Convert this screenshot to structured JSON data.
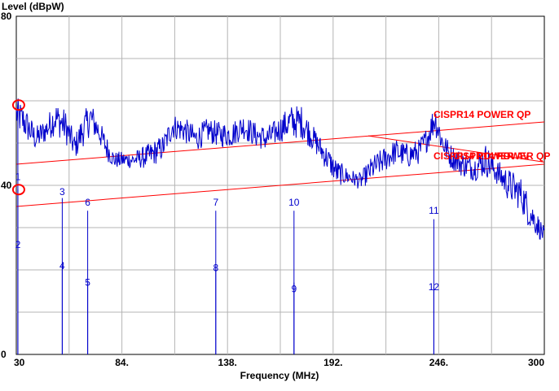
{
  "chart_data": {
    "type": "line",
    "ylabel": "Level (dBpW)",
    "xlabel": "Frequency (MHz)",
    "xlim": [
      30,
      300
    ],
    "ylim": [
      0,
      80
    ],
    "x_ticks": [
      "30",
      "84.",
      "138.",
      "192.",
      "246.",
      "300"
    ],
    "y_ticks": [
      "0",
      "40",
      "80"
    ],
    "grid": true,
    "colors": {
      "trace": "#0000cc",
      "limit": "#ff0000",
      "grid": "#b4b4b4"
    },
    "limit_lines": [
      {
        "name": "CISPR14 POWER QP",
        "x": [
          30,
          300
        ],
        "y": [
          45,
          55
        ]
      },
      {
        "name": "CISPR14 POWER AV",
        "x": [
          30,
          300
        ],
        "y": [
          35,
          45
        ]
      }
    ],
    "limit_labels": [
      "CISPR14 POWER QP",
      "CISPR14 POWER AV",
      "CISPR14 POWER QP"
    ],
    "trace_profile": {
      "x": [
        30,
        34,
        40,
        45,
        50,
        55,
        60,
        64,
        68,
        72,
        76,
        80,
        84,
        90,
        98,
        105,
        110,
        116,
        122,
        128,
        134,
        140,
        146,
        152,
        158,
        164,
        170,
        176,
        182,
        188,
        194,
        200,
        206,
        212,
        218,
        224,
        230,
        236,
        240,
        244,
        248,
        252,
        258,
        264,
        270,
        276,
        282,
        288,
        292,
        296,
        300
      ],
      "y": [
        57,
        55,
        51,
        53,
        56,
        54,
        49,
        53,
        56,
        53,
        49,
        46,
        46,
        46,
        47,
        49,
        54,
        53,
        51,
        53,
        52,
        52,
        54,
        52,
        51,
        53,
        55,
        55,
        51,
        47,
        43,
        42,
        41,
        44,
        46,
        48,
        47,
        48,
        51,
        56,
        50,
        47,
        45,
        44,
        46,
        43,
        40,
        38,
        34,
        31,
        28
      ],
      "spread": [
        4,
        4,
        3,
        3,
        4,
        4,
        3,
        4,
        4,
        3,
        3,
        2,
        2,
        2,
        3,
        3,
        3,
        3,
        3,
        3,
        3,
        3,
        3,
        3,
        3,
        3,
        4,
        4,
        3,
        3,
        3,
        2,
        2,
        3,
        3,
        3,
        3,
        3,
        3,
        4,
        3,
        3,
        3,
        3,
        4,
        3,
        4,
        4,
        4,
        3,
        2
      ]
    },
    "markers": [
      {
        "label": "1",
        "freq": 30.8,
        "level": 59,
        "label_level": 42,
        "circle": true
      },
      {
        "label": "2",
        "freq": 30.8,
        "level": 39,
        "label_level": 26,
        "circle": true
      },
      {
        "label": "3",
        "freq": 53.5,
        "level": 37,
        "label_level": 38.5
      },
      {
        "label": "4",
        "freq": 53.5,
        "level": 21,
        "label_level": 21
      },
      {
        "label": "6",
        "freq": 66.5,
        "level": 34,
        "label_level": 36
      },
      {
        "label": "5",
        "freq": 66.5,
        "level": 17,
        "label_level": 17
      },
      {
        "label": "7",
        "freq": 132,
        "level": 34,
        "label_level": 36
      },
      {
        "label": "8",
        "freq": 132,
        "level": 20,
        "label_level": 20.5
      },
      {
        "label": "10",
        "freq": 172,
        "level": 34,
        "label_level": 36
      },
      {
        "label": "9",
        "freq": 172,
        "level": 17,
        "label_level": 15.5
      },
      {
        "label": "11",
        "freq": 243.5,
        "level": 32,
        "label_level": 34
      },
      {
        "label": "12",
        "freq": 243.5,
        "level": 16,
        "label_level": 16
      }
    ]
  }
}
